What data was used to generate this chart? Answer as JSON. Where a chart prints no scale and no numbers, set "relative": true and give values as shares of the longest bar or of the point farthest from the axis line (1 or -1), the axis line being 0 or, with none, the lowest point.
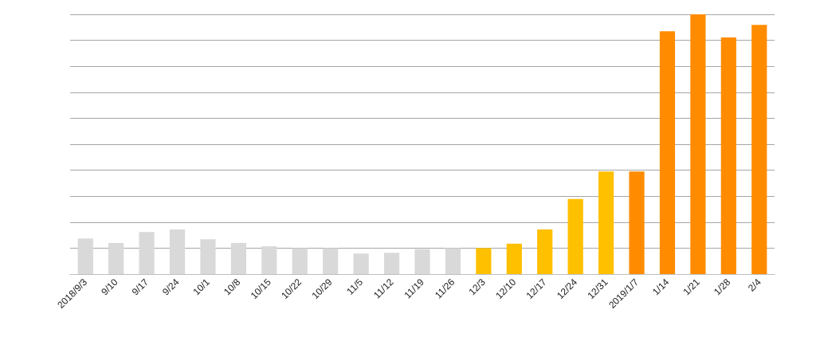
{
  "chart_data": {
    "type": "bar",
    "relative": true,
    "grid": "y",
    "categories": [
      "2018/9/3",
      "9/10",
      "9/17",
      "9/24",
      "10/1",
      "10/8",
      "10/15",
      "10/22",
      "10/29",
      "11/5",
      "11/12",
      "11/19",
      "11/26",
      "12/3",
      "12/10",
      "12/17",
      "12/24",
      "12/31",
      "2019/1/7",
      "1/14",
      "1/21",
      "1/28",
      "2/4"
    ],
    "values": [
      0.137,
      0.12,
      0.162,
      0.172,
      0.134,
      0.12,
      0.107,
      0.1,
      0.1,
      0.079,
      0.082,
      0.096,
      0.1,
      0.1,
      0.117,
      0.172,
      0.289,
      0.395,
      0.395,
      0.935,
      1,
      0.911,
      0.959
    ],
    "colors": [
      "#d9d9d9",
      "#d9d9d9",
      "#d9d9d9",
      "#d9d9d9",
      "#d9d9d9",
      "#d9d9d9",
      "#d9d9d9",
      "#d9d9d9",
      "#d9d9d9",
      "#d9d9d9",
      "#d9d9d9",
      "#d9d9d9",
      "#d9d9d9",
      "#ffc000",
      "#ffc000",
      "#ffc000",
      "#ffc000",
      "#ffc000",
      "#ff8c00",
      "#ff8c00",
      "#ff8c00",
      "#ff8c00",
      "#ff8c00"
    ]
  }
}
